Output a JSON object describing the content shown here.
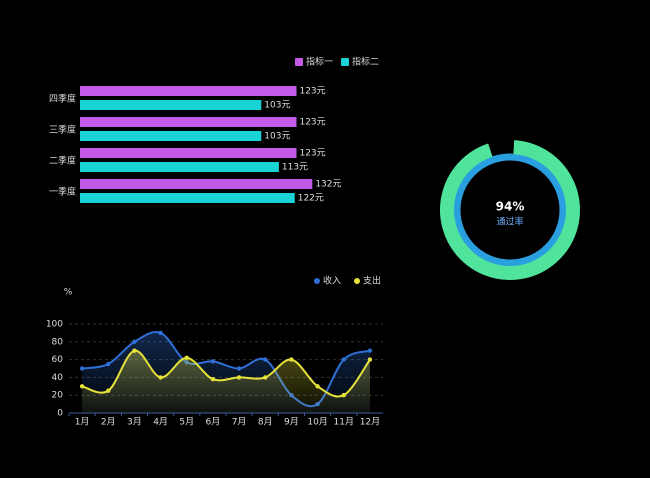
{
  "chart_data": [
    {
      "type": "bar",
      "orientation": "horizontal",
      "categories": [
        "四季度",
        "三季度",
        "二季度",
        "一季度"
      ],
      "series": [
        {
          "name": "指标一",
          "color": "#c45be8",
          "values": [
            123,
            123,
            123,
            132
          ],
          "value_labels": [
            "123元",
            "123元",
            "123元",
            "132元"
          ]
        },
        {
          "name": "指标二",
          "color": "#19d3d6",
          "values": [
            103,
            103,
            113,
            122
          ],
          "value_labels": [
            "103元",
            "103元",
            "113元",
            "122元"
          ]
        }
      ]
    },
    {
      "type": "gauge",
      "value": 94,
      "value_label": "94%",
      "label": "通过率",
      "color": "#4fe39c",
      "track_color": "#2a9fe0"
    },
    {
      "type": "line",
      "y_label": "%",
      "categories": [
        "1月",
        "2月",
        "3月",
        "4月",
        "5月",
        "6月",
        "7月",
        "8月",
        "9月",
        "10月",
        "11月",
        "12月"
      ],
      "series": [
        {
          "name": "收入",
          "color": "#2f6fd6",
          "values": [
            50,
            55,
            80,
            90,
            57,
            58,
            50,
            60,
            20,
            10,
            60,
            70
          ]
        },
        {
          "name": "支出",
          "color": "#e6e23a",
          "values": [
            30,
            25,
            70,
            40,
            62,
            38,
            40,
            40,
            60,
            30,
            20,
            60
          ]
        }
      ],
      "ylim": [
        0,
        100
      ],
      "yticks": [
        0,
        20,
        40,
        60,
        80,
        100
      ],
      "grid": true
    }
  ]
}
